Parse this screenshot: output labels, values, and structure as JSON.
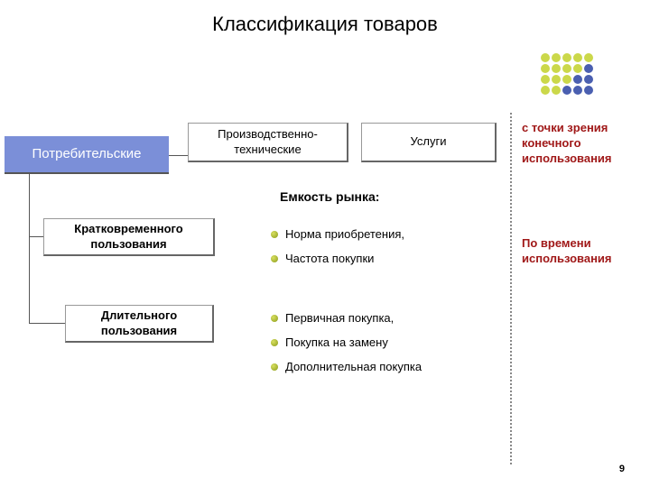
{
  "title": "Классификация товаров",
  "boxes": {
    "consumer": "Потребительские",
    "prod_tech": "Производственно-технические",
    "services": "Услуги",
    "short_use": "Кратковременного пользования",
    "long_use": "Длительного пользования"
  },
  "capacity_heading": "Емкость рынка:",
  "bullets_a": {
    "b0": "Норма приобретения,",
    "b1": "Частота покупки"
  },
  "bullets_b": {
    "b0": "Первичная покупка,",
    "b1": "Покупка на замену",
    "b2": "Дополнительная покупка"
  },
  "notes": {
    "n1": "с точки зрения конечного использования",
    "n2": "По времени использования"
  },
  "page_number": "9",
  "dot_grid": {
    "rows": [
      [
        "#cbd84a",
        "#cbd84a",
        "#cbd84a",
        "#cbd84a",
        "#cbd84a"
      ],
      [
        "#cbd84a",
        "#cbd84a",
        "#cbd84a",
        "#cbd84a",
        "#4a5fb0"
      ],
      [
        "#cbd84a",
        "#cbd84a",
        "#cbd84a",
        "#4a5fb0",
        "#4a5fb0"
      ],
      [
        "#cbd84a",
        "#cbd84a",
        "#4a5fb0",
        "#4a5fb0",
        "#4a5fb0"
      ]
    ]
  },
  "style": {
    "background": "#ffffff",
    "accent_box_bg": "#7b8fd8",
    "note_color": "#a01818",
    "dotted_color": "#888888",
    "title_fontsize": 22,
    "body_fontsize": 13
  }
}
